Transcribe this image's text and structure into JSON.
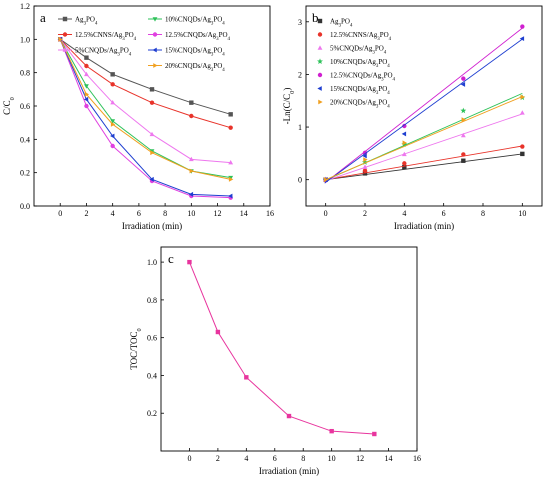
{
  "chart_data": [
    {
      "id": "a",
      "panel_label": "a",
      "type": "line",
      "xlabel": "Irradiation (min)",
      "ylabel": "C/C",
      "ylabel_sub": "0",
      "xlim": [
        -2,
        16
      ],
      "ylim": [
        0.0,
        1.2
      ],
      "xticks": [
        0,
        2,
        4,
        6,
        8,
        10,
        12,
        14,
        16
      ],
      "yticks": [
        0.0,
        0.2,
        0.4,
        0.6,
        0.8,
        1.0,
        1.2
      ],
      "tick_labels_x": [
        "0",
        "2",
        "4",
        "6",
        "8",
        "10",
        "12",
        "14",
        "16"
      ],
      "tick_labels_y": [
        "0.0",
        "0.2",
        "0.4",
        "0.6",
        "0.8",
        "1.0",
        "1.2"
      ],
      "legend": "top, two columns",
      "x": [
        0,
        2,
        4,
        7,
        10,
        13
      ],
      "series": [
        {
          "name": "Ag",
          "sub1": "3",
          "name2": "PO",
          "sub2": "4",
          "color": "#555555",
          "marker": "square",
          "values": [
            1.0,
            0.89,
            0.79,
            0.7,
            0.62,
            0.55
          ]
        },
        {
          "name": "12.5%CNNS/Ag",
          "sub1": "3",
          "name2": "PO",
          "sub2": "4",
          "color": "#e8332a",
          "marker": "circle",
          "values": [
            1.0,
            0.84,
            0.73,
            0.62,
            0.54,
            0.47
          ]
        },
        {
          "name": "5%CNQDs/Ag",
          "sub1": "3",
          "name2": "PO",
          "sub2": "4",
          "color": "#ee77ee",
          "marker": "triangle-up",
          "values": [
            1.0,
            0.79,
            0.62,
            0.43,
            0.28,
            0.26
          ]
        },
        {
          "name": "10%CNQDs/Ag",
          "sub1": "3",
          "name2": "PO",
          "sub2": "4",
          "color": "#2ec25a",
          "marker": "triangle-down",
          "values": [
            1.0,
            0.72,
            0.51,
            0.33,
            0.21,
            0.17
          ]
        },
        {
          "name": "12.5%CNQDs/Ag",
          "sub1": "3",
          "name2": "PO",
          "sub2": "4",
          "color": "#e040e0",
          "marker": "circle",
          "values": [
            1.0,
            0.6,
            0.36,
            0.15,
            0.06,
            0.05
          ]
        },
        {
          "name": "15%CNQDs/Ag",
          "sub1": "3",
          "name2": "PO",
          "sub2": "4",
          "color": "#1f3fd0",
          "marker": "triangle-left",
          "values": [
            1.0,
            0.64,
            0.42,
            0.16,
            0.07,
            0.06
          ]
        },
        {
          "name": "20%CNQDs/Ag",
          "sub1": "3",
          "name2": "PO",
          "sub2": "4",
          "color": "#f0a020",
          "marker": "triangle-right",
          "values": [
            1.0,
            0.67,
            0.49,
            0.32,
            0.21,
            0.16
          ]
        }
      ]
    },
    {
      "id": "b",
      "panel_label": "b",
      "type": "scatter",
      "xlabel": "Irradiation (min)",
      "ylabel": "-Ln(C/C",
      "ylabel_sub": "0",
      "ylabel_end": ")",
      "xlim": [
        -1,
        11
      ],
      "ylim": [
        -0.5,
        3.3
      ],
      "xticks": [
        0,
        2,
        4,
        6,
        8,
        10
      ],
      "yticks": [
        0,
        1,
        2,
        3
      ],
      "tick_labels_x": [
        "0",
        "2",
        "4",
        "6",
        "8",
        "10"
      ],
      "tick_labels_y": [
        "0",
        "1",
        "2",
        "3"
      ],
      "legend": "top-left",
      "fit_lines": true,
      "x": [
        0,
        2,
        4,
        7,
        10
      ],
      "series": [
        {
          "name": "Ag",
          "sub1": "3",
          "name2": "PO",
          "sub2": "4",
          "color": "#333333",
          "marker": "square",
          "values": [
            0.0,
            0.12,
            0.24,
            0.36,
            0.49
          ],
          "fit": [
            0.0,
            0.049
          ]
        },
        {
          "name": "12.5%CNNS/Ag",
          "sub1": "3",
          "name2": "PO",
          "sub2": "4",
          "color": "#e8332a",
          "marker": "circle",
          "values": [
            0.0,
            0.17,
            0.31,
            0.48,
            0.63
          ],
          "fit": [
            0.0,
            0.064
          ]
        },
        {
          "name": "5%CNQDs/Ag",
          "sub1": "3",
          "name2": "PO",
          "sub2": "4",
          "color": "#ee77ee",
          "marker": "triangle-up",
          "values": [
            0.0,
            0.24,
            0.48,
            0.84,
            1.27
          ],
          "fit": [
            -0.02,
            0.127
          ]
        },
        {
          "name": "10%CNQDs/Ag",
          "sub1": "3",
          "name2": "PO",
          "sub2": "4",
          "color": "#2ec25a",
          "marker": "star",
          "values": [
            0.0,
            0.33,
            0.67,
            1.31,
            1.56
          ],
          "fit": [
            -0.01,
            0.165
          ]
        },
        {
          "name": "12.5%CNQDs/Ag",
          "sub1": "3",
          "name2": "PO",
          "sub2": "4",
          "color": "#d020d0",
          "marker": "circle",
          "values": [
            0.0,
            0.51,
            1.02,
            1.92,
            2.91
          ],
          "fit": [
            -0.05,
            0.293
          ]
        },
        {
          "name": "15%CNQDs/Ag",
          "sub1": "3",
          "name2": "PO",
          "sub2": "4",
          "color": "#1f3fd0",
          "marker": "triangle-left",
          "values": [
            0.0,
            0.45,
            0.87,
            1.81,
            2.68
          ],
          "fit": [
            -0.05,
            0.272
          ]
        },
        {
          "name": "20%CNQDs/Ag",
          "sub1": "3",
          "name2": "PO",
          "sub2": "4",
          "color": "#f0a020",
          "marker": "triangle-right",
          "values": [
            0.0,
            0.38,
            0.7,
            1.14,
            1.57
          ],
          "fit": [
            0.0,
            0.158
          ]
        }
      ]
    },
    {
      "id": "c",
      "panel_label": "c",
      "type": "line",
      "xlabel": "Irradiation (min)",
      "ylabel": "TOC/TOC",
      "ylabel_sub": "0",
      "xlim": [
        -2,
        16
      ],
      "ylim": [
        0.0,
        1.08
      ],
      "xticks": [
        0,
        2,
        4,
        6,
        8,
        10,
        12,
        14,
        16
      ],
      "yticks": [
        0.2,
        0.4,
        0.6,
        0.8,
        1.0
      ],
      "tick_labels_x": [
        "0",
        "2",
        "4",
        "6",
        "8",
        "10",
        "12",
        "14",
        "16"
      ],
      "tick_labels_y": [
        "0.2",
        "0.4",
        "0.6",
        "0.8",
        "1.0"
      ],
      "x": [
        0,
        2,
        4,
        7,
        10,
        13
      ],
      "series": [
        {
          "color": "#e8359e",
          "marker": "square",
          "values": [
            1.0,
            0.63,
            0.39,
            0.185,
            0.105,
            0.09
          ]
        }
      ]
    }
  ]
}
